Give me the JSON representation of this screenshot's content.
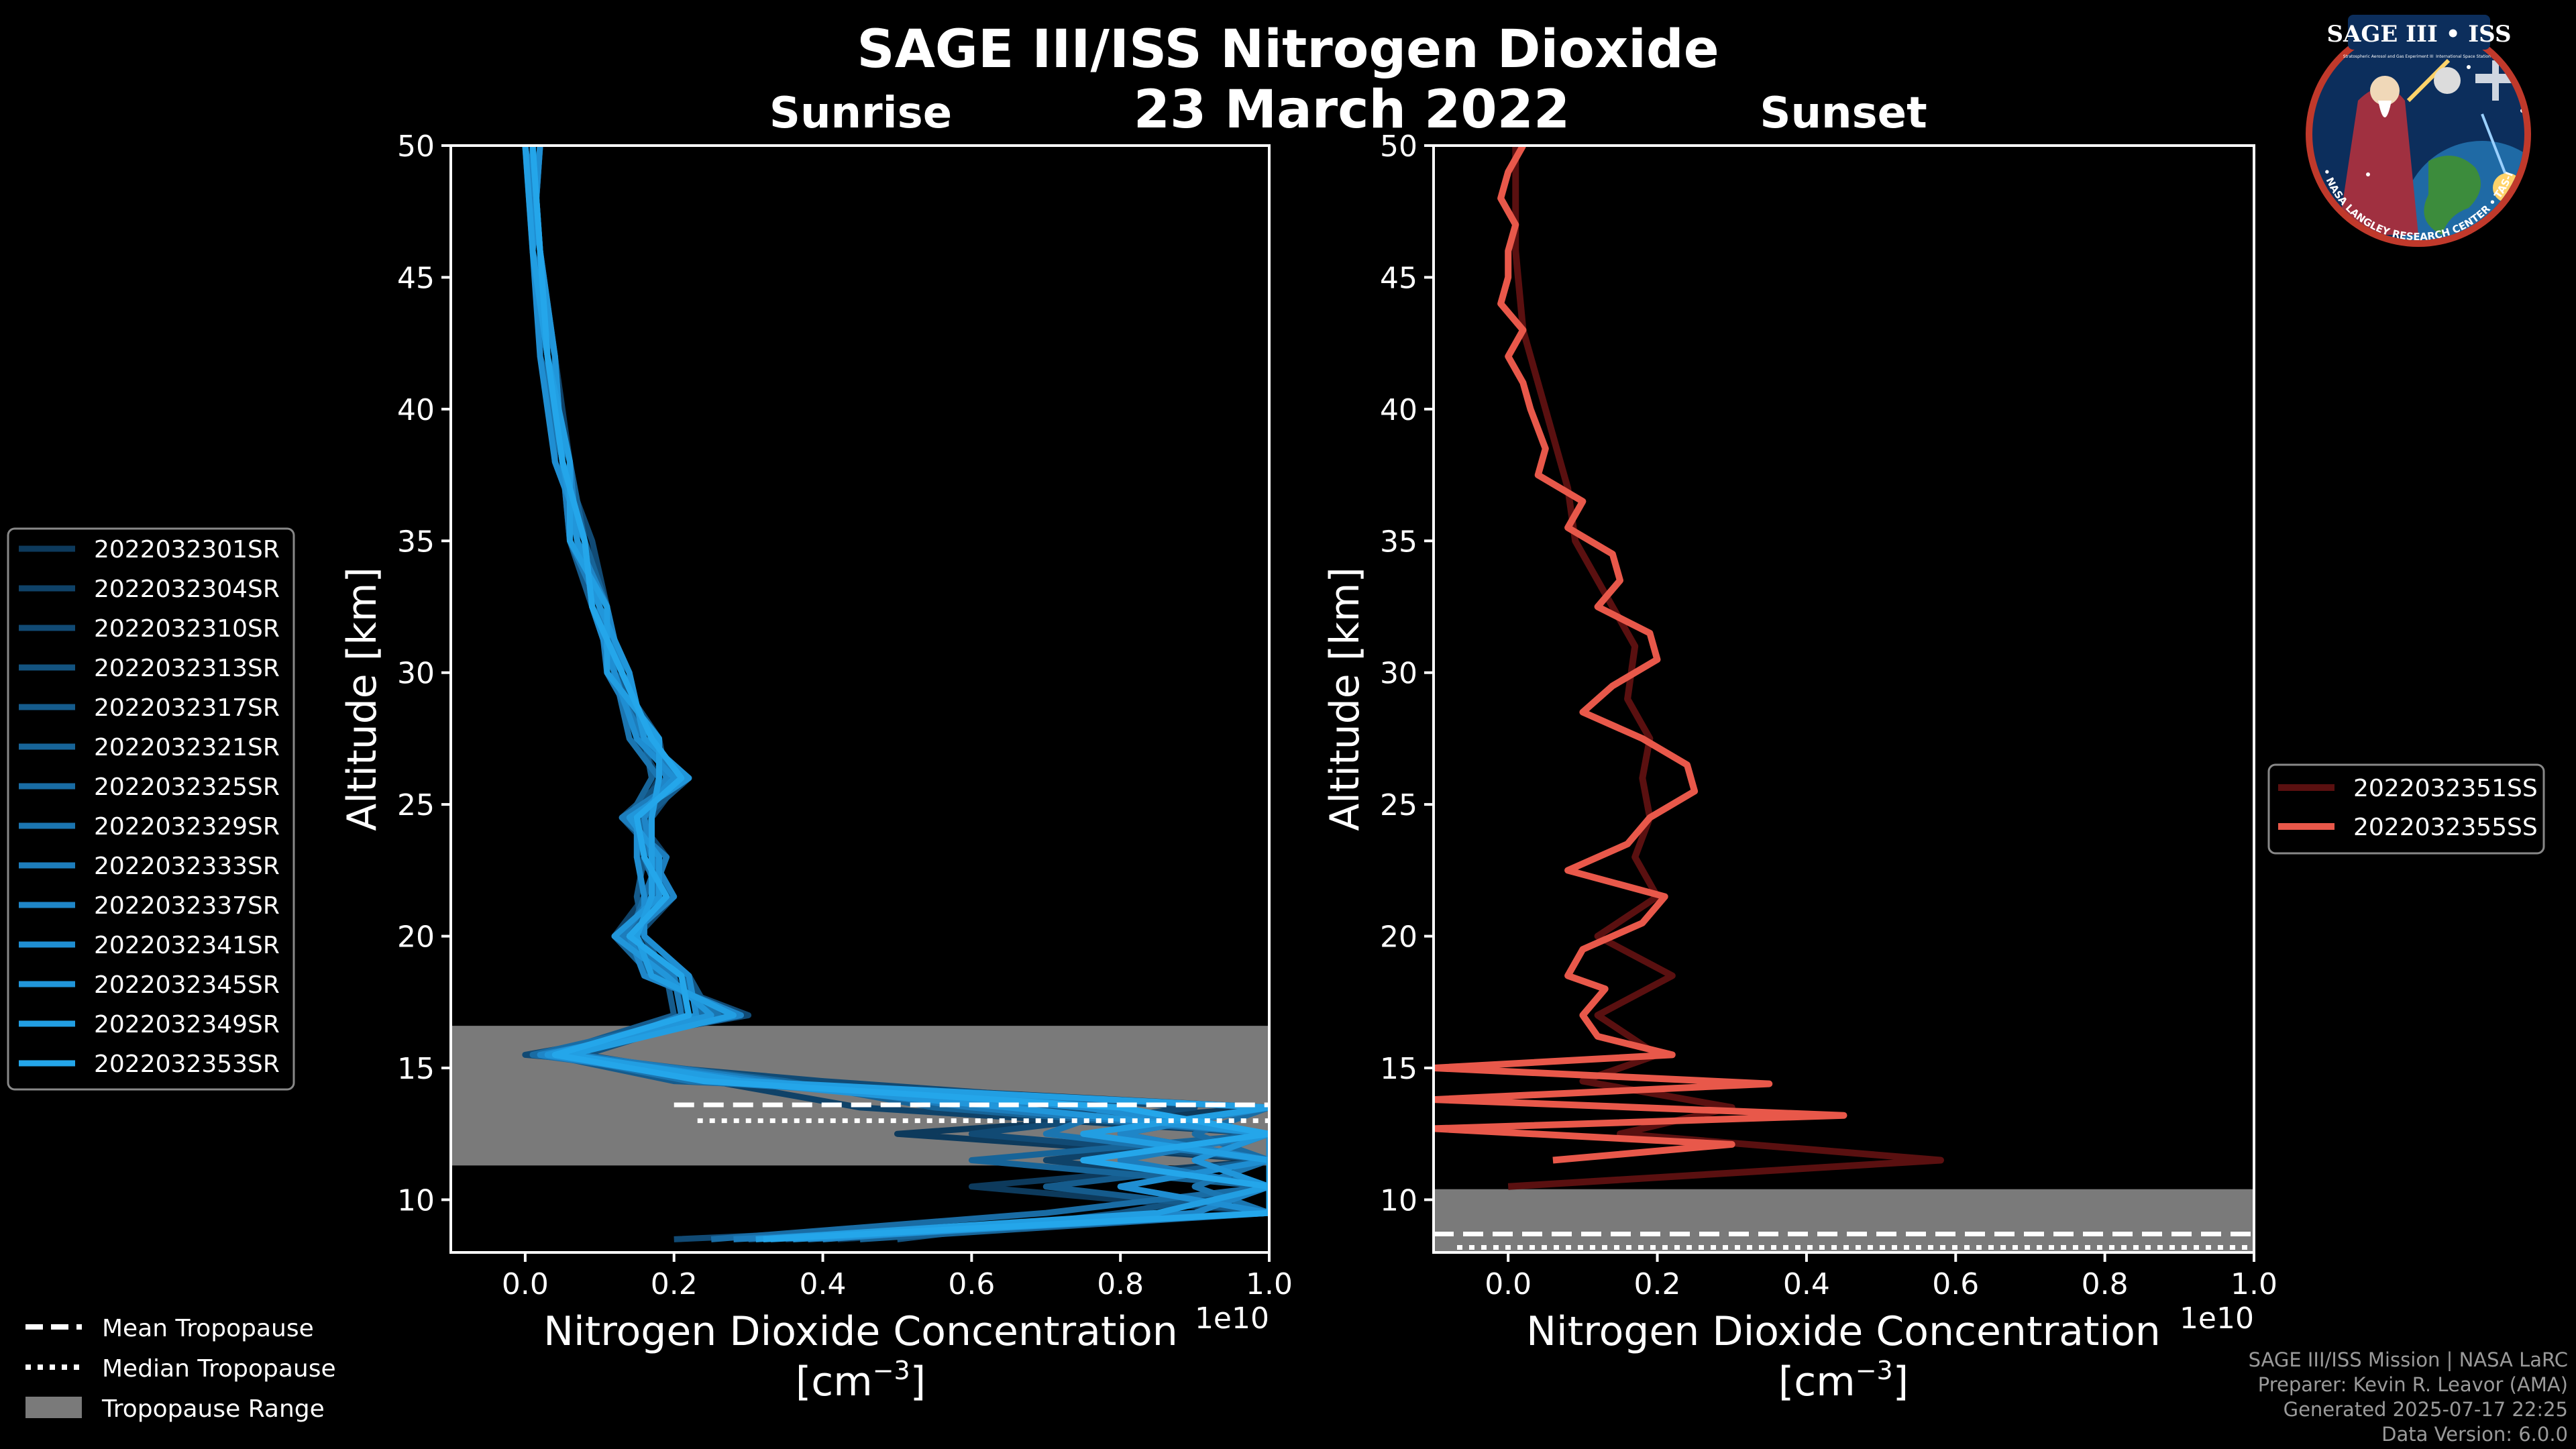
{
  "title": "SAGE III/ISS Nitrogen Dioxide",
  "date": "23 March 2022",
  "logo": {
    "title": "SAGE III • ISS",
    "subtitle_left": "Stratospheric Aerosol and Gas Experiment III",
    "subtitle_right": "International Space Station",
    "ring": "BALL • NASA LANGLEY RESEARCH CENTER • TAS-I • ESA"
  },
  "tropopause_legend": {
    "mean": "Mean Tropopause",
    "median": "Median Tropopause",
    "range": "Tropopause Range"
  },
  "credits": {
    "line1": "SAGE III/ISS Mission | NASA LaRC",
    "line2": "Preparer: Kevin R. Leavor (AMA)",
    "line3": "Generated 2025-07-17 22:25",
    "line4": "Data Version: 6.0.0"
  },
  "colors": {
    "background": "#000000",
    "sunrise_line": "#1f8fd0",
    "sunset_line": "#e8584a",
    "tropopause_range": "#7a7a7a"
  },
  "chart_data": [
    {
      "type": "line",
      "title": "Sunrise",
      "xlabel": "Nitrogen Dioxide Concentration",
      "xlabel_unit": "[cm",
      "xlabel_exp": "−3",
      "xlabel_unit_close": "]",
      "x_multiplier": "1e10",
      "ylabel": "Altitude [km]",
      "xlim": [
        -0.1,
        1.0
      ],
      "ylim": [
        8,
        50
      ],
      "xticks": [
        "0.0",
        "0.2",
        "0.4",
        "0.6",
        "0.8",
        "1.0"
      ],
      "xtick_values": [
        0.0,
        0.2,
        0.4,
        0.6,
        0.8,
        1.0
      ],
      "yticks": [
        "10",
        "15",
        "20",
        "25",
        "30",
        "35",
        "40",
        "45",
        "50"
      ],
      "ytick_values": [
        10,
        15,
        20,
        25,
        30,
        35,
        40,
        45,
        50
      ],
      "legend_position": "left",
      "tropopause": {
        "min": 11.3,
        "max": 16.6,
        "mean": 13.6,
        "median": 13.0,
        "x_start": 0.2
      },
      "series": [
        {
          "name": "2022032301SR",
          "values": [
            0.42,
            1.0,
            0.6,
            1.0,
            0.5,
            1.0,
            0.32,
            0.02,
            0.28,
            0.18,
            0.14,
            0.18,
            0.17,
            0.14,
            0.2,
            0.17,
            0.12,
            0.1,
            0.08,
            0.05,
            0.03,
            0.02,
            0.01
          ]
        },
        {
          "name": "2022032304SR",
          "values": [
            0.35,
            0.9,
            1.0,
            0.7,
            1.0,
            0.45,
            0.25,
            0.05,
            0.22,
            0.2,
            0.12,
            0.16,
            0.19,
            0.15,
            0.18,
            0.15,
            0.13,
            0.09,
            0.07,
            0.06,
            0.04,
            0.02,
            0.0
          ]
        },
        {
          "name": "2022032310SR",
          "values": [
            0.2,
            1.0,
            0.8,
            1.0,
            0.6,
            0.9,
            0.4,
            0.0,
            0.3,
            0.16,
            0.15,
            0.2,
            0.15,
            0.17,
            0.21,
            0.16,
            0.11,
            0.11,
            0.09,
            0.05,
            0.03,
            0.01,
            0.02
          ]
        },
        {
          "name": "2022032313SR",
          "values": [
            0.5,
            0.8,
            1.0,
            0.9,
            1.0,
            0.7,
            0.3,
            0.08,
            0.25,
            0.22,
            0.13,
            0.17,
            0.18,
            0.13,
            0.19,
            0.18,
            0.12,
            0.1,
            0.08,
            0.04,
            0.04,
            0.02,
            0.01
          ]
        },
        {
          "name": "2022032317SR",
          "values": [
            0.3,
            1.0,
            0.7,
            1.0,
            0.8,
            1.0,
            0.2,
            0.03,
            0.2,
            0.19,
            0.16,
            0.15,
            0.16,
            0.16,
            0.22,
            0.15,
            0.14,
            0.09,
            0.06,
            0.05,
            0.03,
            0.01,
            0.0
          ]
        },
        {
          "name": "2022032321SR",
          "values": [
            0.45,
            1.0,
            1.0,
            0.6,
            1.0,
            0.55,
            0.35,
            0.06,
            0.27,
            0.17,
            0.12,
            0.19,
            0.17,
            0.14,
            0.17,
            0.16,
            0.12,
            0.11,
            0.08,
            0.06,
            0.02,
            0.02,
            0.01
          ]
        },
        {
          "name": "2022032325SR",
          "values": [
            0.25,
            0.7,
            1.0,
            1.0,
            0.9,
            1.0,
            0.28,
            0.01,
            0.24,
            0.21,
            0.14,
            0.16,
            0.18,
            0.15,
            0.2,
            0.17,
            0.13,
            0.1,
            0.07,
            0.05,
            0.03,
            0.01,
            0.02
          ]
        },
        {
          "name": "2022032329SR",
          "values": [
            0.38,
            1.0,
            0.9,
            1.0,
            0.7,
            0.8,
            0.22,
            0.04,
            0.26,
            0.18,
            0.15,
            0.18,
            0.16,
            0.17,
            0.18,
            0.14,
            0.12,
            0.09,
            0.08,
            0.04,
            0.03,
            0.02,
            0.0
          ]
        },
        {
          "name": "2022032333SR",
          "values": [
            0.28,
            1.0,
            1.0,
            0.8,
            1.0,
            0.6,
            0.33,
            0.07,
            0.21,
            0.2,
            0.13,
            0.17,
            0.19,
            0.13,
            0.21,
            0.16,
            0.11,
            0.1,
            0.06,
            0.05,
            0.04,
            0.01,
            0.01
          ]
        },
        {
          "name": "2022032337SR",
          "values": [
            0.4,
            0.9,
            1.0,
            1.0,
            0.8,
            1.0,
            0.26,
            0.02,
            0.29,
            0.16,
            0.14,
            0.2,
            0.17,
            0.16,
            0.19,
            0.17,
            0.13,
            0.11,
            0.07,
            0.06,
            0.03,
            0.02,
            0.0
          ]
        },
        {
          "name": "2022032341SR",
          "values": [
            0.33,
            1.0,
            0.8,
            1.0,
            1.0,
            0.75,
            0.31,
            0.05,
            0.23,
            0.22,
            0.16,
            0.16,
            0.15,
            0.15,
            0.2,
            0.15,
            0.12,
            0.09,
            0.08,
            0.04,
            0.02,
            0.01,
            0.02
          ]
        },
        {
          "name": "2022032345SR",
          "values": [
            0.36,
            1.0,
            1.0,
            0.9,
            1.0,
            0.65,
            0.27,
            0.03,
            0.25,
            0.19,
            0.12,
            0.18,
            0.18,
            0.14,
            0.22,
            0.16,
            0.14,
            0.1,
            0.07,
            0.05,
            0.04,
            0.02,
            0.01
          ]
        },
        {
          "name": "2022032349SR",
          "values": [
            0.31,
            0.85,
            1.0,
            1.0,
            0.75,
            1.0,
            0.29,
            0.06,
            0.28,
            0.17,
            0.15,
            0.17,
            0.17,
            0.17,
            0.18,
            0.18,
            0.11,
            0.11,
            0.06,
            0.06,
            0.03,
            0.01,
            0.0
          ]
        },
        {
          "name": "2022032353SR",
          "values": [
            0.32,
            1.0,
            1.0,
            0.75,
            1.0,
            0.8,
            0.24,
            0.04,
            0.22,
            0.21,
            0.14,
            0.19,
            0.16,
            0.15,
            0.21,
            0.17,
            0.13,
            0.09,
            0.08,
            0.05,
            0.03,
            0.02,
            0.01
          ]
        }
      ],
      "altitudes": [
        8.5,
        9.5,
        10.5,
        11.5,
        12.5,
        13.5,
        14.5,
        15.5,
        17,
        18.5,
        20,
        21.5,
        23,
        24.5,
        26,
        27.5,
        30,
        32.5,
        35,
        38,
        42,
        46,
        50
      ]
    },
    {
      "type": "line",
      "title": "Sunset",
      "xlabel": "Nitrogen Dioxide Concentration",
      "xlabel_unit": "[cm",
      "xlabel_exp": "−3",
      "xlabel_unit_close": "]",
      "x_multiplier": "1e10",
      "ylabel": "Altitude [km]",
      "xlim": [
        -0.1,
        1.0
      ],
      "ylim": [
        8,
        50
      ],
      "xticks": [
        "0.0",
        "0.2",
        "0.4",
        "0.6",
        "0.8",
        "1.0"
      ],
      "xtick_values": [
        0.0,
        0.2,
        0.4,
        0.6,
        0.8,
        1.0
      ],
      "yticks": [
        "10",
        "15",
        "20",
        "25",
        "30",
        "35",
        "40",
        "45",
        "50"
      ],
      "ytick_values": [
        10,
        15,
        20,
        25,
        30,
        35,
        40,
        45,
        50
      ],
      "legend_position": "right",
      "tropopause": {
        "min": 8,
        "max": 10.4,
        "mean": 8.7,
        "median": 8.7,
        "x_start": -0.1
      },
      "series": [
        {
          "name": "2022032351SS",
          "altitudes": [
            10.5,
            11.5,
            12.5,
            13.5,
            14.5,
            15.5,
            17,
            18.5,
            20,
            21.5,
            23,
            24.5,
            26,
            27.5,
            29,
            31,
            33,
            35,
            37,
            40,
            43,
            46,
            48,
            50
          ],
          "values": [
            0.0,
            0.58,
            0.15,
            0.3,
            0.1,
            0.2,
            0.12,
            0.22,
            0.12,
            0.2,
            0.17,
            0.19,
            0.18,
            0.19,
            0.16,
            0.17,
            0.13,
            0.09,
            0.08,
            0.05,
            0.02,
            0.01,
            0.01,
            0.01
          ]
        },
        {
          "name": "2022032355SS",
          "altitudes": [
            11.5,
            12.1,
            12.7,
            13.2,
            13.8,
            14.4,
            15,
            15.5,
            16.2,
            17,
            18,
            18.5,
            19.5,
            20.5,
            21.5,
            22.5,
            23.5,
            24.5,
            25.5,
            26.5,
            27.5,
            28.5,
            29.5,
            30.5,
            31.5,
            32.5,
            33.5,
            34.5,
            35.5,
            36.5,
            37.5,
            38.5,
            40,
            41,
            42,
            43,
            44,
            45,
            46,
            47,
            48,
            49,
            50
          ],
          "values": [
            0.06,
            0.3,
            -0.1,
            0.45,
            -0.1,
            0.35,
            -0.1,
            0.22,
            0.12,
            0.1,
            0.13,
            0.08,
            0.1,
            0.18,
            0.21,
            0.08,
            0.16,
            0.19,
            0.25,
            0.24,
            0.18,
            0.1,
            0.14,
            0.2,
            0.19,
            0.12,
            0.15,
            0.14,
            0.08,
            0.1,
            0.04,
            0.05,
            0.03,
            0.02,
            0.0,
            0.02,
            -0.01,
            0.0,
            0.0,
            0.01,
            -0.01,
            0.0,
            0.02
          ]
        }
      ]
    }
  ]
}
